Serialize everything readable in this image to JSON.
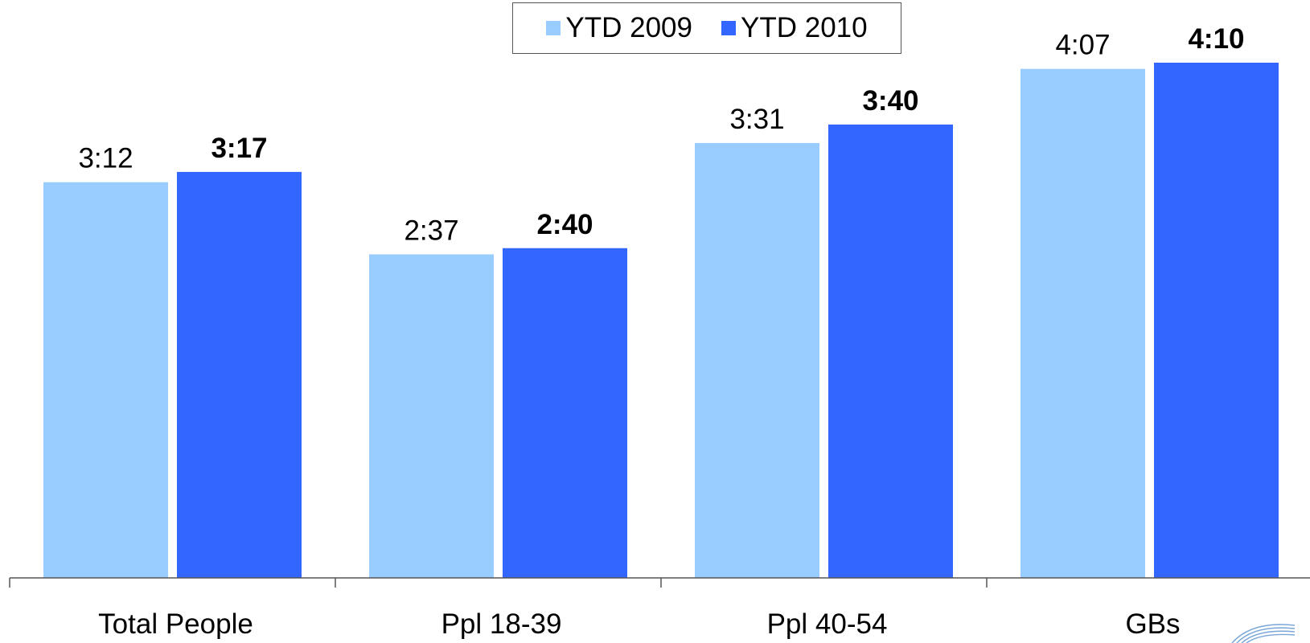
{
  "chart_data": {
    "type": "bar",
    "title": "",
    "xlabel": "",
    "ylabel": "",
    "categories": [
      "Total People",
      "Ppl 18-39",
      "Ppl 40-54",
      "GBs"
    ],
    "series": [
      {
        "name": "YTD 2009",
        "color": "#99ccff",
        "values": [
          192,
          157,
          211,
          247
        ],
        "labels": [
          "3:12",
          "2:37",
          "3:31",
          "4:07"
        ],
        "label_weight": "normal"
      },
      {
        "name": "YTD 2010",
        "color": "#3366ff",
        "values": [
          197,
          160,
          220,
          250
        ],
        "labels": [
          "3:17",
          "2:40",
          "3:40",
          "4:10"
        ],
        "label_weight": "bold"
      }
    ],
    "unit": "minutes",
    "ylim": [
      0,
      250
    ],
    "grid": false,
    "legend_position": "top-center"
  },
  "logo": {
    "name": "logo-icon"
  }
}
